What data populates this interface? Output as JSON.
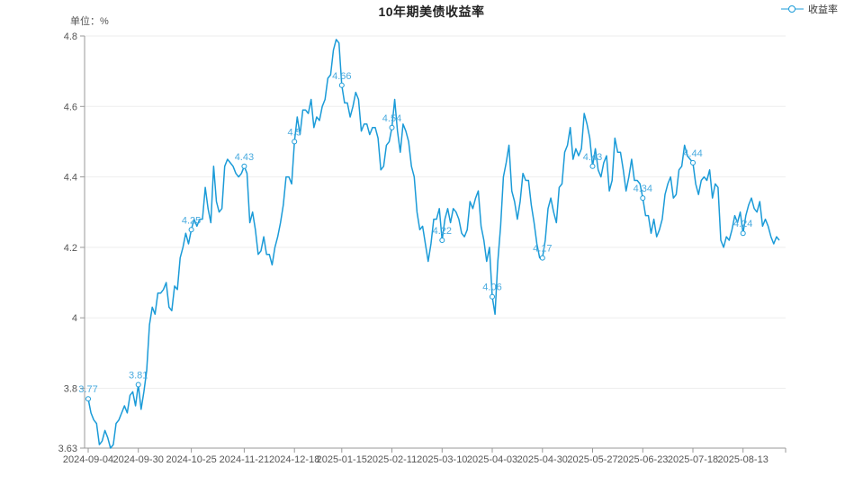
{
  "page": {
    "background": "#ffffff"
  },
  "chart_data": {
    "type": "line",
    "title": "10年期美债收益率",
    "unit_label": "单位：%",
    "legend": [
      {
        "label": "收益率"
      }
    ],
    "color": "#1b9bd8",
    "label_color": "#4aabdf",
    "axis_color": "#999999",
    "grid_color": "#eeeeee",
    "tick_text_color": "#555555",
    "grid_on": true,
    "legend_position": "top-right",
    "ylim": [
      3.63,
      4.8
    ],
    "yticks": [
      {
        "label": "4.8",
        "value": 4.8,
        "grid": true
      },
      {
        "label": "4.6",
        "value": 4.6,
        "grid": true
      },
      {
        "label": "4.4",
        "value": 4.4,
        "grid": true
      },
      {
        "label": "4.2",
        "value": 4.2,
        "grid": true
      },
      {
        "label": "4",
        "value": 4.0,
        "grid": true
      },
      {
        "label": "3.8",
        "value": 3.8,
        "grid": true
      },
      {
        "label": "3.63",
        "value": 3.63,
        "grid": false
      }
    ],
    "x_tick_labels": [
      "2024-09-04",
      "2024-09-30",
      "2024-10-25",
      "2024-11-21",
      "2024-12-18",
      "2025-01-15",
      "2025-02-11",
      "2025-03-10",
      "2025-04-03",
      "2025-04-30",
      "2025-05-27",
      "2025-06-23",
      "2025-07-18",
      "2025-08-13"
    ],
    "x_tick_indices": [
      0,
      18,
      37,
      56,
      74,
      91,
      109,
      127,
      145,
      163,
      181,
      199,
      217,
      235
    ],
    "labeled_points": [
      {
        "index": 0,
        "label": "3.77"
      },
      {
        "index": 18,
        "label": "3.81"
      },
      {
        "index": 37,
        "label": "4.25"
      },
      {
        "index": 56,
        "label": "4.43"
      },
      {
        "index": 74,
        "label": "4.5"
      },
      {
        "index": 91,
        "label": "4.66"
      },
      {
        "index": 109,
        "label": "4.54"
      },
      {
        "index": 127,
        "label": "4.22"
      },
      {
        "index": 145,
        "label": "4.06"
      },
      {
        "index": 163,
        "label": "4.17"
      },
      {
        "index": 181,
        "label": "4.43"
      },
      {
        "index": 199,
        "label": "4.34"
      },
      {
        "index": 217,
        "label": "4.44"
      },
      {
        "index": 235,
        "label": "4.24"
      }
    ],
    "series": [
      {
        "name": "收益率",
        "values": [
          3.77,
          3.73,
          3.71,
          3.7,
          3.64,
          3.65,
          3.68,
          3.66,
          3.63,
          3.64,
          3.7,
          3.71,
          3.73,
          3.75,
          3.73,
          3.78,
          3.79,
          3.75,
          3.81,
          3.74,
          3.79,
          3.85,
          3.98,
          4.03,
          4.01,
          4.07,
          4.07,
          4.08,
          4.1,
          4.03,
          4.02,
          4.09,
          4.08,
          4.17,
          4.2,
          4.24,
          4.21,
          4.25,
          4.28,
          4.26,
          4.28,
          4.28,
          4.37,
          4.31,
          4.27,
          4.43,
          4.33,
          4.3,
          4.31,
          4.43,
          4.45,
          4.44,
          4.43,
          4.41,
          4.4,
          4.41,
          4.43,
          4.41,
          4.27,
          4.3,
          4.25,
          4.18,
          4.19,
          4.23,
          4.18,
          4.18,
          4.15,
          4.2,
          4.23,
          4.27,
          4.32,
          4.4,
          4.4,
          4.38,
          4.5,
          4.57,
          4.52,
          4.59,
          4.59,
          4.58,
          4.62,
          4.54,
          4.57,
          4.56,
          4.6,
          4.62,
          4.68,
          4.69,
          4.76,
          4.79,
          4.78,
          4.66,
          4.61,
          4.61,
          4.57,
          4.6,
          4.64,
          4.62,
          4.53,
          4.55,
          4.55,
          4.52,
          4.54,
          4.54,
          4.51,
          4.42,
          4.43,
          4.49,
          4.5,
          4.54,
          4.62,
          4.53,
          4.47,
          4.55,
          4.53,
          4.5,
          4.43,
          4.4,
          4.3,
          4.25,
          4.26,
          4.21,
          4.16,
          4.21,
          4.28,
          4.28,
          4.31,
          4.22,
          4.28,
          4.31,
          4.27,
          4.31,
          4.3,
          4.28,
          4.24,
          4.23,
          4.25,
          4.33,
          4.31,
          4.34,
          4.36,
          4.26,
          4.22,
          4.16,
          4.2,
          4.06,
          4.01,
          4.16,
          4.26,
          4.4,
          4.44,
          4.49,
          4.36,
          4.33,
          4.28,
          4.33,
          4.41,
          4.39,
          4.39,
          4.32,
          4.27,
          4.21,
          4.17,
          4.17,
          4.22,
          4.31,
          4.34,
          4.3,
          4.27,
          4.37,
          4.38,
          4.47,
          4.49,
          4.54,
          4.45,
          4.48,
          4.46,
          4.48,
          4.58,
          4.55,
          4.51,
          4.43,
          4.48,
          4.42,
          4.4,
          4.44,
          4.46,
          4.36,
          4.39,
          4.51,
          4.47,
          4.47,
          4.42,
          4.36,
          4.4,
          4.45,
          4.39,
          4.39,
          4.38,
          4.34,
          4.29,
          4.29,
          4.24,
          4.28,
          4.23,
          4.25,
          4.28,
          4.35,
          4.38,
          4.4,
          4.34,
          4.35,
          4.42,
          4.43,
          4.49,
          4.46,
          4.45,
          4.44,
          4.38,
          4.35,
          4.39,
          4.4,
          4.39,
          4.42,
          4.34,
          4.38,
          4.37,
          4.22,
          4.2,
          4.23,
          4.22,
          4.25,
          4.29,
          4.27,
          4.3,
          4.24,
          4.29,
          4.32,
          4.34,
          4.31,
          4.3,
          4.33,
          4.26,
          4.28,
          4.26,
          4.23,
          4.21,
          4.23,
          4.22
        ]
      }
    ]
  }
}
